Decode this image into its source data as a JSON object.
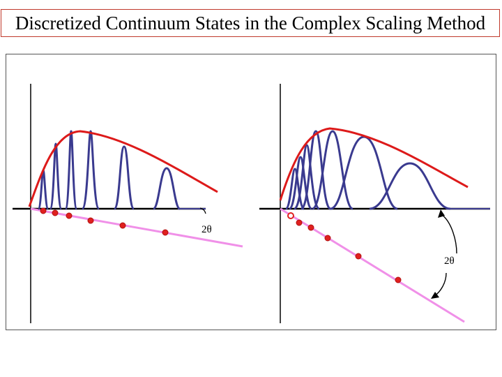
{
  "title": "Discretized Continuum States in the Complex Scaling Method",
  "panels": [
    {
      "angle_label": "2θ"
    },
    {
      "angle_label": "2θ"
    }
  ],
  "colors": {
    "envelope": "#dd1a1a",
    "wavefunctions": "#3a3a8f",
    "rotated_line": "#f090e8",
    "eigenvalue_points": "#e0201f",
    "axes": "#000000"
  }
}
